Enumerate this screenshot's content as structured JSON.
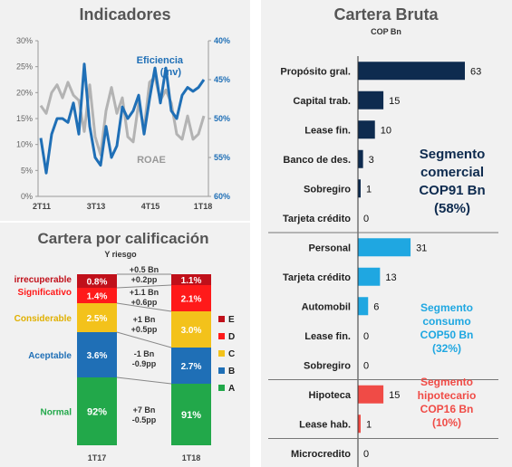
{
  "chart_data": [
    {
      "type": "line",
      "title": "Indicadores",
      "x_ticks": [
        "2T11",
        "3T13",
        "4T15",
        "1T18"
      ],
      "y_left": {
        "ticks": [
          "0%",
          "5%",
          "10%",
          "15%",
          "20%",
          "25%",
          "30%"
        ],
        "range": [
          0,
          30
        ]
      },
      "y_right": {
        "ticks": [
          "40%",
          "45%",
          "50%",
          "55%",
          "60%"
        ],
        "range": [
          40,
          60
        ],
        "inverted": true
      },
      "series": [
        {
          "name": "ROAE",
          "axis": "left",
          "color": "#b3b3b3",
          "values": [
            17.5,
            16,
            20,
            21.5,
            19,
            22,
            19.5,
            18.5,
            12.5,
            21.5,
            11.5,
            8,
            16.5,
            21,
            16,
            19,
            11.5,
            10.5,
            18,
            13,
            22,
            23,
            18.5,
            20.5,
            18,
            12,
            11,
            15.5,
            11,
            12,
            15.5
          ]
        },
        {
          "name": "Eficiencia (inv)",
          "axis": "right",
          "color": "#1f6fb6",
          "values": [
            52.5,
            57,
            52,
            50,
            50,
            50.5,
            48,
            52,
            43,
            51,
            55,
            56,
            51,
            55,
            53.5,
            48.5,
            50,
            49,
            47,
            52,
            47.5,
            43.5,
            48,
            43.5,
            49,
            50,
            47,
            46,
            46.5,
            46,
            45
          ]
        }
      ]
    },
    {
      "type": "bar",
      "title": "Cartera por calificación",
      "subtitle": "Y riesgo",
      "categories": [
        "1T17",
        "1T18"
      ],
      "stacked": true,
      "series": [
        {
          "name": "A",
          "rating": "Normal",
          "color": "#22a84a",
          "values": [
            92,
            91
          ],
          "labels": [
            "92%",
            "91%"
          ]
        },
        {
          "name": "B",
          "rating": "Aceptable",
          "color": "#1f6fb6",
          "values": [
            3.6,
            2.7
          ],
          "labels": [
            "3.6%",
            "2.7%"
          ]
        },
        {
          "name": "C",
          "rating": "Considerable",
          "color": "#f3c21b",
          "values": [
            2.5,
            3.0
          ],
          "labels": [
            "2.5%",
            "3.0%"
          ]
        },
        {
          "name": "D",
          "rating": "Significativo",
          "color": "#ff1a1a",
          "values": [
            1.4,
            2.1
          ],
          "labels": [
            "1.4%",
            "2.1%"
          ]
        },
        {
          "name": "E",
          "rating": "irrecuperable",
          "color": "#c0101a",
          "values": [
            0.8,
            1.1
          ],
          "labels": [
            "0.8%",
            "1.1%"
          ]
        }
      ],
      "changes": [
        {
          "rating": "E",
          "lines": [
            "+0.5 Bn",
            "+0.2pp"
          ]
        },
        {
          "rating": "D",
          "lines": [
            "+1.1 Bn",
            "+0.6pp"
          ]
        },
        {
          "rating": "C",
          "lines": [
            "+1 Bn",
            "+0.5pp"
          ]
        },
        {
          "rating": "B",
          "lines": [
            "-1 Bn",
            "-0.9pp"
          ]
        },
        {
          "rating": "A",
          "lines": [
            "+7 Bn",
            "-0.5pp"
          ]
        }
      ]
    },
    {
      "type": "bar",
      "orientation": "horizontal",
      "title": "Cartera Bruta",
      "subtitle": "COP Bn",
      "categories": [
        "Propósito gral.",
        "Capital trab.",
        "Lease fin.",
        "Banco de des.",
        "Sobregiro",
        "Tarjeta crédito",
        "Personal",
        "Tarjeta crédito",
        "Automobil",
        "Lease fin.",
        "Sobregiro",
        "Hipoteca",
        "Lease hab.",
        "Microcredito"
      ],
      "values": [
        63,
        15,
        10,
        3,
        1,
        0,
        31,
        13,
        6,
        0,
        0,
        15,
        1,
        0
      ],
      "groups": [
        {
          "segment": "comercial",
          "color": "#0e2b4f",
          "rows": [
            0,
            1,
            2,
            3,
            4,
            5
          ],
          "label_lines": [
            "Segmento",
            "comercial",
            "COP91 Bn",
            "(58%)"
          ],
          "label_color": "#0e2b4f"
        },
        {
          "segment": "consumo",
          "color": "#1fa7e1",
          "rows": [
            6,
            7,
            8,
            9,
            10
          ],
          "label_lines": [
            "Segmento",
            "consumo",
            "COP50 Bn",
            "(32%)"
          ],
          "label_color": "#1fa7e1"
        },
        {
          "segment": "hipotecario",
          "color": "#f04b46",
          "rows": [
            11,
            12
          ],
          "label_lines": [
            "Segmento",
            "hipotecario",
            "COP16 Bn",
            "(10%)"
          ],
          "label_color": "#f04b46"
        },
        {
          "segment": "micro",
          "color": "#0e2b4f",
          "rows": [
            13
          ],
          "label_lines": [],
          "label_color": "#0e2b4f"
        }
      ]
    }
  ]
}
